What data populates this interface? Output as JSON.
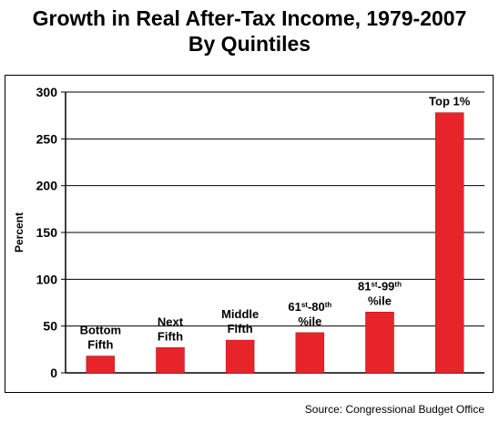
{
  "title_line1": "Growth in Real After-Tax Income, 1979-2007",
  "title_line2": "By Quintiles",
  "source": "Source: Congressional Budget Office",
  "colors": {
    "bar": "#e8242b",
    "grid": "#000000"
  },
  "chart_data": {
    "type": "bar",
    "title": "Growth in Real After-Tax Income, 1979-2007 By Quintiles",
    "xlabel": "",
    "ylabel": "Percent",
    "ylim": [
      0,
      300
    ],
    "yticks": [
      0,
      50,
      100,
      150,
      200,
      250,
      300
    ],
    "grid": true,
    "categories": [
      {
        "lines": [
          {
            "text": "Bottom"
          },
          {
            "text": "Fifth"
          }
        ]
      },
      {
        "lines": [
          {
            "text": "Next"
          },
          {
            "text": "Fifth"
          }
        ]
      },
      {
        "lines": [
          {
            "text": "Middle"
          },
          {
            "text": "Fifth"
          }
        ]
      },
      {
        "lines": [
          {
            "text": "61",
            "sup": "st",
            "mid": "-80",
            "sup2": "th"
          },
          {
            "text": "%ile"
          }
        ]
      },
      {
        "lines": [
          {
            "text": "81",
            "sup": "st",
            "mid": "-99",
            "sup2": "th"
          },
          {
            "text": "%ile"
          }
        ]
      },
      {
        "lines": [
          {
            "text": "Top 1%"
          }
        ]
      }
    ],
    "values": [
      18,
      27,
      35,
      43,
      65,
      278
    ]
  }
}
